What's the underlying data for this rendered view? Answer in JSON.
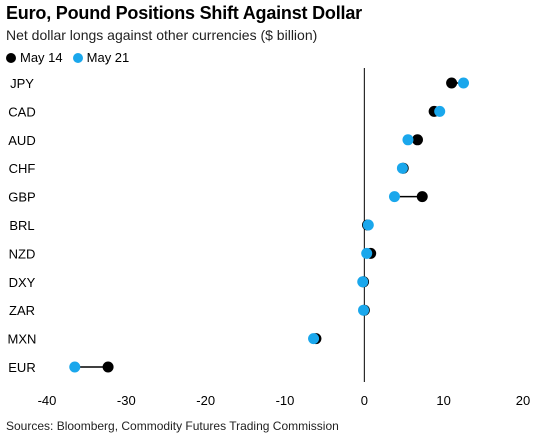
{
  "title": "Euro, Pound Positions Shift Against Dollar",
  "subtitle": "Net dollar longs against other currencies ($ billion)",
  "source": "Sources: Bloomberg, Commodity Futures Trading Commission",
  "colors": {
    "may14": "#000000",
    "may21": "#1aa7ec",
    "connector": "#000000",
    "zero_line": "#000000"
  },
  "chart_data": {
    "type": "dot",
    "categories": [
      "JPY",
      "CAD",
      "AUD",
      "CHF",
      "GBP",
      "BRL",
      "NZD",
      "DXY",
      "ZAR",
      "MXN",
      "EUR"
    ],
    "series": [
      {
        "name": "May 14",
        "values": [
          11.0,
          8.8,
          6.7,
          4.9,
          7.3,
          0.4,
          0.8,
          -0.1,
          0.0,
          -6.1,
          -32.3
        ]
      },
      {
        "name": "May 21",
        "values": [
          12.5,
          9.5,
          5.5,
          4.8,
          3.8,
          0.5,
          0.3,
          -0.2,
          -0.1,
          -6.4,
          -36.5
        ]
      }
    ],
    "xlim": [
      -40,
      20
    ],
    "xticks": [
      "-40",
      "-30",
      "-20",
      "-10",
      "0",
      "10",
      "20"
    ],
    "grid": false,
    "legend_position": "top-left"
  }
}
